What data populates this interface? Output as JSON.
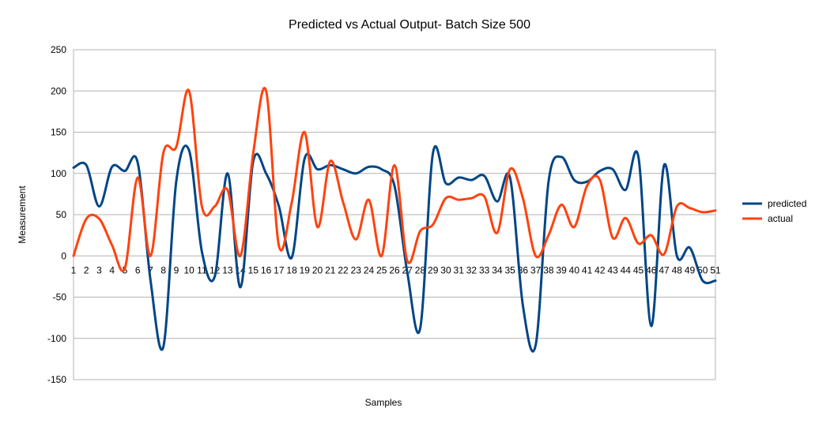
{
  "chart_data": {
    "type": "line",
    "title": "Predicted vs Actual Output- Batch Size 500",
    "xlabel": "Samples",
    "ylabel": "Measurement",
    "ylim": [
      -150,
      250
    ],
    "yticks": [
      250,
      200,
      150,
      100,
      50,
      0,
      -50,
      -100,
      -150
    ],
    "grid": true,
    "legend_position": "right",
    "categories": [
      "1",
      "2",
      "3",
      "4",
      "5",
      "6",
      "7",
      "8",
      "9",
      "10",
      "11",
      "12",
      "13",
      "14",
      "15",
      "16",
      "17",
      "18",
      "19",
      "20",
      "21",
      "22",
      "23",
      "24",
      "25",
      "26",
      "27",
      "28",
      "29",
      "30",
      "31",
      "32",
      "33",
      "34",
      "35",
      "36",
      "37",
      "38",
      "39",
      "40",
      "41",
      "42",
      "43",
      "44",
      "45",
      "46",
      "47",
      "48",
      "49",
      "50",
      "51"
    ],
    "series": [
      {
        "name": "predicted",
        "color": "#004586",
        "values": [
          107,
          110,
          60,
          108,
          103,
          113,
          -30,
          -110,
          90,
          128,
          5,
          -25,
          100,
          -38,
          115,
          100,
          60,
          -2,
          118,
          105,
          110,
          105,
          100,
          108,
          105,
          85,
          -20,
          -88,
          125,
          88,
          95,
          92,
          97,
          66,
          95,
          -60,
          -108,
          90,
          120,
          92,
          90,
          103,
          105,
          80,
          120,
          -85,
          110,
          0,
          10,
          -30,
          -30
        ]
      },
      {
        "name": "actual",
        "color": "#ff420e",
        "values": [
          0,
          45,
          45,
          13,
          -15,
          95,
          0,
          125,
          132,
          200,
          60,
          60,
          80,
          0,
          125,
          200,
          12,
          65,
          150,
          35,
          115,
          65,
          20,
          68,
          0,
          110,
          -6,
          30,
          38,
          70,
          68,
          70,
          72,
          28,
          105,
          70,
          0,
          25,
          62,
          35,
          85,
          92,
          22,
          46,
          15,
          25,
          2,
          60,
          58,
          53,
          55
        ]
      }
    ]
  }
}
